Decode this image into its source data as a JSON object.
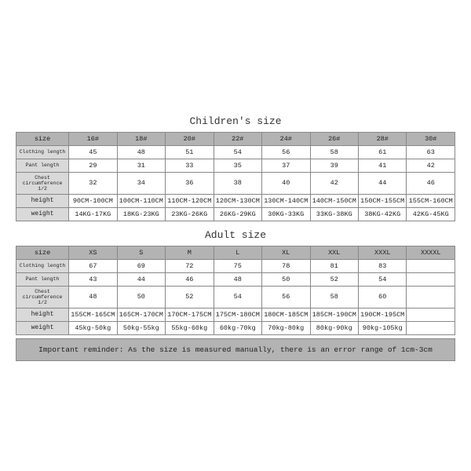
{
  "children": {
    "title": "Children's size",
    "sizes": [
      "16#",
      "18#",
      "20#",
      "22#",
      "24#",
      "26#",
      "28#",
      "30#"
    ],
    "rows": [
      {
        "label": "size",
        "small": false
      },
      {
        "label": "Clothing length",
        "small": true,
        "data": [
          "45",
          "48",
          "51",
          "54",
          "56",
          "58",
          "61",
          "63"
        ]
      },
      {
        "label": "Pant length",
        "small": true,
        "data": [
          "29",
          "31",
          "33",
          "35",
          "37",
          "39",
          "41",
          "42"
        ]
      },
      {
        "label": "Chest circumference 1/2",
        "small": true,
        "data": [
          "32",
          "34",
          "36",
          "38",
          "40",
          "42",
          "44",
          "46"
        ]
      },
      {
        "label": "height",
        "small": false,
        "data": [
          "90CM-100CM",
          "100CM-110CM",
          "110CM-120CM",
          "120CM-130CM",
          "130CM-140CM",
          "140CM-150CM",
          "150CM-155CM",
          "155CM-160CM"
        ]
      },
      {
        "label": "weight",
        "small": false,
        "data": [
          "14KG-17KG",
          "18KG-23KG",
          "23KG-26KG",
          "26KG-29KG",
          "30KG-33KG",
          "33KG-38KG",
          "38KG-42KG",
          "42KG-45KG"
        ]
      }
    ]
  },
  "adult": {
    "title": "Adult size",
    "sizes": [
      "XS",
      "S",
      "M",
      "L",
      "XL",
      "XXL",
      "XXXL",
      "XXXXL"
    ],
    "rows": [
      {
        "label": "size",
        "small": false
      },
      {
        "label": "Clothing length",
        "small": true,
        "data": [
          "67",
          "69",
          "72",
          "75",
          "78",
          "81",
          "83",
          ""
        ]
      },
      {
        "label": "Pant length",
        "small": true,
        "data": [
          "43",
          "44",
          "46",
          "48",
          "50",
          "52",
          "54",
          ""
        ]
      },
      {
        "label": "Chest circumference 1/2",
        "small": true,
        "data": [
          "48",
          "50",
          "52",
          "54",
          "56",
          "58",
          "60",
          ""
        ]
      },
      {
        "label": "height",
        "small": false,
        "data": [
          "155CM-165CM",
          "165CM-170CM",
          "170CM-175CM",
          "175CM-180CM",
          "180CM-185CM",
          "185CM-190CM",
          "190CM-195CM",
          ""
        ]
      },
      {
        "label": "weight",
        "small": false,
        "data": [
          "45kg-50kg",
          "50kg-55kg",
          "55kg-60kg",
          "60kg-70kg",
          "70kg-80kg",
          "80kg-90kg",
          "90kg-105kg",
          ""
        ]
      }
    ]
  },
  "reminder": "Important reminder: As the size is measured manually, there is an error range of 1cm-3cm"
}
